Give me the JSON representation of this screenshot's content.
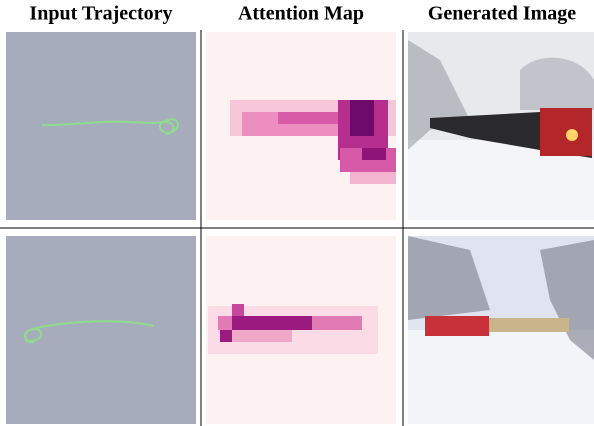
{
  "header": {
    "columns": [
      "Input Trajectory",
      "Attention Map",
      "Generated Image"
    ]
  }
}
